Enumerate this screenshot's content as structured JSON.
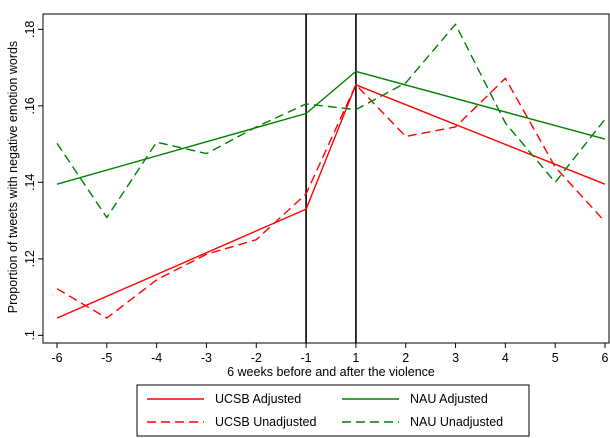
{
  "chart_data": {
    "type": "line",
    "title": "",
    "xlabel": "6 weeks before and after the violence",
    "ylabel": "Proportion of tweets with negative emotion words",
    "x_ticks": [
      "-6",
      "-5",
      "-4",
      "-3",
      "-2",
      "-1",
      "1",
      "2",
      "3",
      "4",
      "5",
      "6"
    ],
    "y_ticks": [
      {
        "value": 0.1,
        "label": ".1"
      },
      {
        "value": 0.12,
        "label": ".12"
      },
      {
        "value": 0.14,
        "label": ".14"
      },
      {
        "value": 0.16,
        "label": ".16"
      },
      {
        "value": 0.18,
        "label": ".18"
      }
    ],
    "ylim": [
      0.098,
      0.184
    ],
    "grid": false,
    "vertical_lines_at": [
      "-1",
      "1"
    ],
    "legend_position": "bottom",
    "series": [
      {
        "name": "UCSB Adjusted",
        "color": "#ff0000",
        "dash": "solid",
        "points": [
          {
            "x": "-6",
            "y": 0.1045
          },
          {
            "x": "-1",
            "y": 0.133
          },
          {
            "x": "1",
            "y": 0.1655
          },
          {
            "x": "6",
            "y": 0.1395
          }
        ]
      },
      {
        "name": "NAU Adjusted",
        "color": "#008000",
        "dash": "solid",
        "points": [
          {
            "x": "-6",
            "y": 0.1395
          },
          {
            "x": "-1",
            "y": 0.158
          },
          {
            "x": "1",
            "y": 0.169
          },
          {
            "x": "6",
            "y": 0.1513
          }
        ]
      },
      {
        "name": "UCSB Unadjusted",
        "color": "#ff0000",
        "dash": "dashed",
        "points": [
          {
            "x": "-6",
            "y": 0.1122
          },
          {
            "x": "-5",
            "y": 0.1045
          },
          {
            "x": "-4",
            "y": 0.1145
          },
          {
            "x": "-3",
            "y": 0.1212
          },
          {
            "x": "-2",
            "y": 0.125
          },
          {
            "x": "-1",
            "y": 0.137
          },
          {
            "x": "1",
            "y": 0.1655
          },
          {
            "x": "2",
            "y": 0.152
          },
          {
            "x": "3",
            "y": 0.1545
          },
          {
            "x": "4",
            "y": 0.1672
          },
          {
            "x": "5",
            "y": 0.144
          },
          {
            "x": "6",
            "y": 0.1297
          }
        ]
      },
      {
        "name": "NAU Unadjusted",
        "color": "#008000",
        "dash": "dashed",
        "points": [
          {
            "x": "-6",
            "y": 0.1502
          },
          {
            "x": "-5",
            "y": 0.1308
          },
          {
            "x": "-4",
            "y": 0.1505
          },
          {
            "x": "-3",
            "y": 0.1475
          },
          {
            "x": "-2",
            "y": 0.1545
          },
          {
            "x": "-1",
            "y": 0.1605
          },
          {
            "x": "1",
            "y": 0.159
          },
          {
            "x": "2",
            "y": 0.166
          },
          {
            "x": "3",
            "y": 0.1813
          },
          {
            "x": "4",
            "y": 0.1555
          },
          {
            "x": "5",
            "y": 0.14
          },
          {
            "x": "6",
            "y": 0.1565
          }
        ]
      }
    ]
  }
}
